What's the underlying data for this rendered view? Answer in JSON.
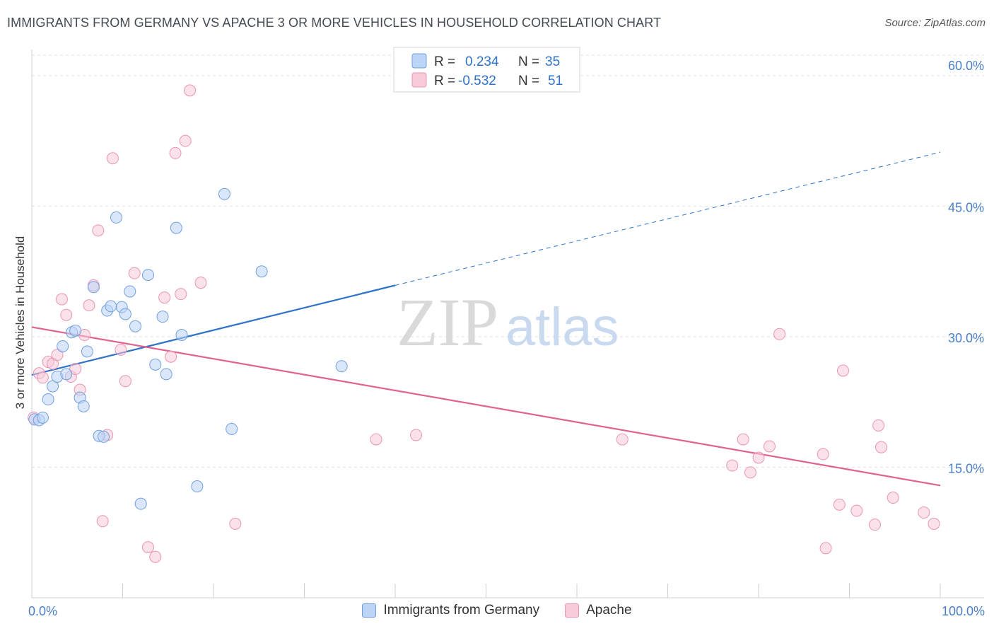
{
  "chart_data": {
    "type": "scatter",
    "title": "IMMIGRANTS FROM GERMANY VS APACHE 3 OR MORE VEHICLES IN HOUSEHOLD CORRELATION CHART",
    "source": "Source: ZipAtlas.com",
    "xlabel": "",
    "ylabel": "3 or more Vehicles in Household",
    "xlim": [
      0,
      100
    ],
    "ylim": [
      0,
      63
    ],
    "x_tick_labels": [
      {
        "value": 0,
        "label": "0.0%"
      },
      {
        "value": 100,
        "label": "100.0%"
      }
    ],
    "y_ticks": [
      {
        "value": 15,
        "label": "15.0%"
      },
      {
        "value": 30,
        "label": "30.0%"
      },
      {
        "value": 45,
        "label": "45.0%"
      },
      {
        "value": 60,
        "label": "60.0%"
      }
    ],
    "grid": true,
    "legend_position": "top-center",
    "watermark": "ZIPatlas",
    "series": [
      {
        "name": "Immigrants from Germany",
        "color": "#6f9fe0",
        "fill": "#bcd4f5",
        "line_color": "#2e73c9",
        "r_label": "R =",
        "r_value": "0.234",
        "n_label": "N =",
        "n_value": "35",
        "trend": {
          "x0": 0,
          "y0": 25.6,
          "x1": 40,
          "y1": 35.9,
          "x_dash_end": 100,
          "y_dash_end": 51.2
        },
        "points": [
          [
            0.3,
            20.5
          ],
          [
            0.8,
            20.4
          ],
          [
            1.2,
            20.7
          ],
          [
            1.8,
            22.8
          ],
          [
            2.3,
            24.3
          ],
          [
            2.8,
            25.4
          ],
          [
            3.4,
            28.9
          ],
          [
            3.8,
            25.7
          ],
          [
            4.4,
            30.5
          ],
          [
            4.8,
            30.7
          ],
          [
            5.3,
            23.0
          ],
          [
            5.7,
            22.0
          ],
          [
            6.1,
            28.3
          ],
          [
            6.8,
            35.7
          ],
          [
            7.4,
            18.6
          ],
          [
            7.9,
            18.5
          ],
          [
            8.3,
            33.0
          ],
          [
            8.7,
            33.5
          ],
          [
            9.3,
            43.7
          ],
          [
            9.9,
            33.4
          ],
          [
            10.3,
            32.6
          ],
          [
            10.8,
            35.2
          ],
          [
            11.4,
            31.2
          ],
          [
            12.0,
            10.8
          ],
          [
            12.8,
            37.1
          ],
          [
            13.6,
            26.8
          ],
          [
            14.4,
            32.3
          ],
          [
            14.8,
            25.7
          ],
          [
            15.9,
            42.5
          ],
          [
            16.5,
            30.2
          ],
          [
            18.2,
            12.8
          ],
          [
            21.2,
            46.4
          ],
          [
            22.0,
            19.4
          ],
          [
            25.3,
            37.5
          ],
          [
            34.1,
            26.6
          ]
        ]
      },
      {
        "name": "Apache",
        "color": "#eb94b1",
        "fill": "#f7cbd9",
        "line_color": "#e0628f",
        "r_label": "R =",
        "r_value": "-0.532",
        "n_label": "N =",
        "n_value": "51",
        "trend": {
          "x0": 0,
          "y0": 31.1,
          "x1": 100,
          "y1": 12.9
        },
        "points": [
          [
            0.2,
            20.7
          ],
          [
            0.8,
            25.8
          ],
          [
            1.2,
            25.3
          ],
          [
            1.8,
            27.1
          ],
          [
            2.3,
            26.9
          ],
          [
            2.8,
            27.9
          ],
          [
            3.3,
            34.3
          ],
          [
            3.8,
            32.5
          ],
          [
            4.3,
            25.4
          ],
          [
            4.8,
            26.3
          ],
          [
            5.3,
            23.9
          ],
          [
            5.8,
            30.2
          ],
          [
            6.3,
            33.6
          ],
          [
            6.8,
            35.9
          ],
          [
            7.3,
            42.2
          ],
          [
            7.8,
            8.8
          ],
          [
            8.3,
            18.7
          ],
          [
            8.9,
            50.5
          ],
          [
            9.8,
            28.5
          ],
          [
            10.3,
            24.9
          ],
          [
            11.3,
            37.3
          ],
          [
            12.8,
            5.8
          ],
          [
            13.6,
            4.7
          ],
          [
            14.6,
            34.5
          ],
          [
            15.3,
            27.7
          ],
          [
            15.8,
            51.1
          ],
          [
            16.4,
            34.9
          ],
          [
            16.9,
            52.5
          ],
          [
            17.4,
            58.3
          ],
          [
            18.6,
            36.2
          ],
          [
            22.4,
            8.5
          ],
          [
            37.9,
            18.2
          ],
          [
            42.3,
            18.7
          ],
          [
            65.0,
            18.2
          ],
          [
            77.1,
            15.2
          ],
          [
            78.3,
            18.2
          ],
          [
            79.1,
            14.4
          ],
          [
            80.0,
            16.1
          ],
          [
            81.2,
            17.4
          ],
          [
            82.3,
            30.3
          ],
          [
            87.1,
            16.5
          ],
          [
            87.4,
            5.7
          ],
          [
            88.9,
            10.7
          ],
          [
            89.3,
            26.1
          ],
          [
            90.8,
            10.0
          ],
          [
            92.8,
            8.4
          ],
          [
            93.2,
            19.8
          ],
          [
            93.5,
            17.3
          ],
          [
            94.8,
            11.5
          ],
          [
            98.2,
            9.8
          ],
          [
            99.3,
            8.5
          ]
        ]
      }
    ]
  }
}
